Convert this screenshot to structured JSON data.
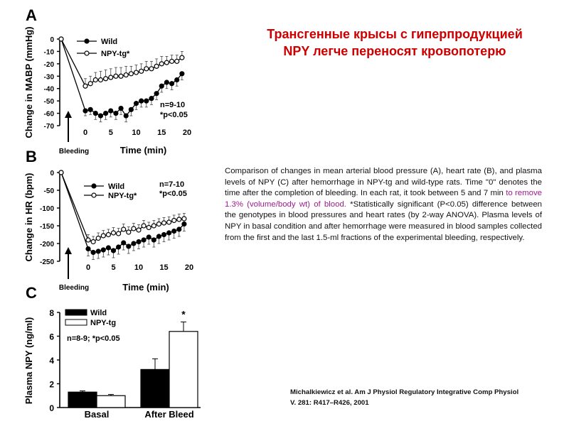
{
  "title": {
    "line1": "Трансгенные крысы с гиперпродукцией",
    "line2": "NPY легче переносят кровопотерю"
  },
  "caption": {
    "before": "Comparison of changes in mean arterial blood pressure (A), heart rate (B), and plasma levels of NPY (C) after hemorrhage in NPY-tg and wild-type rats. Time \"0\" denotes the time after the completion of bleeding. In each rat, it took between 5 and 7 min ",
    "highlight": "to remove 1.3% (volume/body wt) of blood.",
    "after": " *Statistically significant (P<0.05) difference between the genotypes in blood pressures and heart rates (by 2-way ANOVA). Plasma levels of NPY in basal condition and after hemorrhage were measured in blood samples collected from the first and the last 1.5-ml fractions of the experimental bleeding, respectively."
  },
  "citation": {
    "line1": "Michalkiewicz et al. Am J Physiol Regulatory Integrative Comp Physiol",
    "line2": "V. 281: R417–R426, 2001"
  },
  "colors": {
    "title": "#cc0000",
    "highlight": "#a01a8c",
    "wild": "#000000",
    "npytg": "#ffffff"
  },
  "chart_data": [
    {
      "type": "line",
      "panel": "A",
      "ylabel": "Change in MABP (mmHg)",
      "xlabel": "Time (min)",
      "arrow_label": "Bleeding",
      "ylim": [
        -70,
        0
      ],
      "yticks": [
        0,
        -10,
        -20,
        -30,
        -40,
        -50,
        -60,
        -70
      ],
      "xticks": [
        0,
        5,
        10,
        15,
        20
      ],
      "stats": [
        "n=9-10",
        "*p<0.05"
      ],
      "legend_position": "top-left",
      "series": [
        {
          "name": "Wild",
          "marker": "filled",
          "x": [
            -9,
            0,
            1,
            2,
            3,
            4,
            5,
            6,
            7,
            8,
            9,
            10,
            11,
            12,
            13,
            14,
            15,
            16,
            17,
            18,
            19
          ],
          "y": [
            0,
            -58,
            -57,
            -60,
            -62,
            -60,
            -58,
            -60,
            -56,
            -62,
            -57,
            -52,
            -50,
            -50,
            -48,
            -44,
            -38,
            -35,
            -36,
            -33,
            -28
          ],
          "err": [
            0,
            4,
            4,
            5,
            5,
            5,
            5,
            5,
            5,
            5,
            5,
            5,
            5,
            5,
            5,
            5,
            5,
            5,
            5,
            5,
            5
          ]
        },
        {
          "name": "NPY-tg*",
          "marker": "open",
          "x": [
            -9,
            0,
            1,
            2,
            3,
            4,
            5,
            6,
            7,
            8,
            9,
            10,
            11,
            12,
            13,
            14,
            15,
            16,
            17,
            18,
            19
          ],
          "y": [
            0,
            -38,
            -36,
            -33,
            -33,
            -32,
            -31,
            -30,
            -30,
            -29,
            -28,
            -27,
            -26,
            -24,
            -24,
            -22,
            -20,
            -19,
            -18,
            -18,
            -15
          ],
          "err": [
            0,
            6,
            6,
            6,
            7,
            7,
            7,
            7,
            7,
            7,
            6,
            6,
            6,
            6,
            6,
            6,
            6,
            5,
            5,
            5,
            5
          ]
        }
      ]
    },
    {
      "type": "line",
      "panel": "B",
      "ylabel": "Change in HR (bpm)",
      "xlabel": "Time (min)",
      "arrow_label": "Bleeding",
      "ylim": [
        -250,
        0
      ],
      "yticks": [
        0,
        -50,
        -100,
        -150,
        -200,
        -250
      ],
      "xticks": [
        0,
        5,
        10,
        15,
        20
      ],
      "stats": [
        "n=7-10",
        "*p<0.05"
      ],
      "legend_position": "top-left",
      "series": [
        {
          "name": "Wild",
          "marker": "filled",
          "x": [
            -9,
            0,
            1,
            2,
            3,
            4,
            5,
            6,
            7,
            8,
            9,
            10,
            11,
            12,
            13,
            14,
            15,
            16,
            17,
            18,
            19
          ],
          "y": [
            0,
            -215,
            -225,
            -222,
            -218,
            -212,
            -220,
            -210,
            -198,
            -208,
            -200,
            -195,
            -190,
            -182,
            -190,
            -180,
            -175,
            -170,
            -165,
            -160,
            -145
          ],
          "err": [
            0,
            20,
            20,
            20,
            20,
            20,
            20,
            20,
            20,
            20,
            20,
            20,
            20,
            20,
            20,
            20,
            20,
            20,
            20,
            20,
            20
          ]
        },
        {
          "name": "NPY-tg*",
          "marker": "open",
          "x": [
            -9,
            0,
            1,
            2,
            3,
            4,
            5,
            6,
            7,
            8,
            9,
            10,
            11,
            12,
            13,
            14,
            15,
            16,
            17,
            18,
            19
          ],
          "y": [
            0,
            -190,
            -195,
            -185,
            -178,
            -175,
            -170,
            -172,
            -160,
            -168,
            -158,
            -162,
            -150,
            -155,
            -150,
            -145,
            -142,
            -140,
            -135,
            -132,
            -130
          ],
          "err": [
            0,
            15,
            15,
            15,
            15,
            15,
            15,
            15,
            15,
            15,
            15,
            15,
            15,
            15,
            15,
            15,
            15,
            15,
            15,
            15,
            15
          ]
        }
      ]
    },
    {
      "type": "bar",
      "panel": "C",
      "ylabel": "Plasma NPY (ng/ml)",
      "categories": [
        "Basal",
        "After Bleed"
      ],
      "ylim": [
        0,
        8
      ],
      "yticks": [
        0,
        2,
        4,
        6,
        8
      ],
      "stats": [
        "n=8-9; *p<0.05"
      ],
      "significance": "*",
      "legend_position": "top-left",
      "series": [
        {
          "name": "Wild",
          "fill": "filled",
          "values": [
            1.3,
            3.2
          ],
          "err": [
            0.1,
            0.9
          ]
        },
        {
          "name": "NPY-tg",
          "fill": "open",
          "values": [
            1.0,
            6.4
          ],
          "err": [
            0.1,
            0.8
          ]
        }
      ]
    }
  ]
}
